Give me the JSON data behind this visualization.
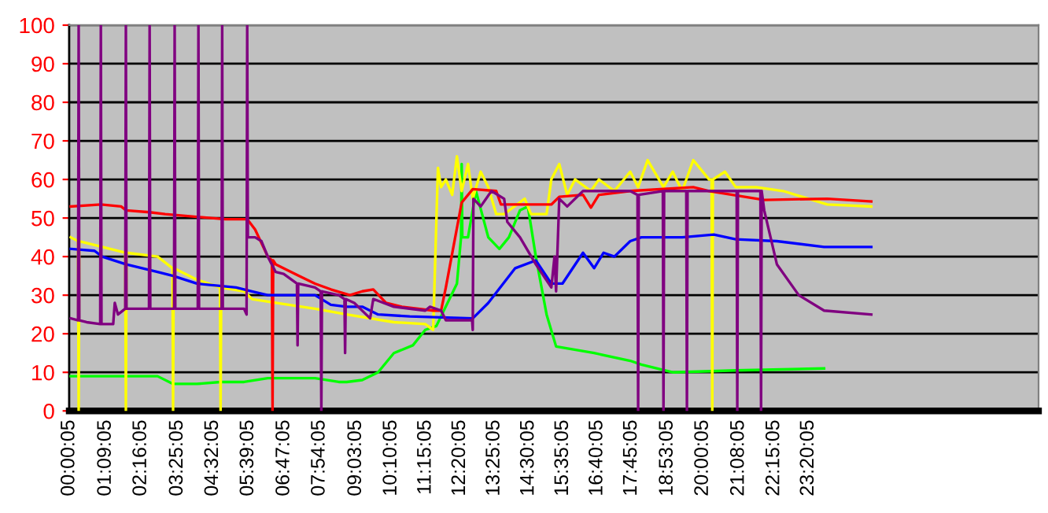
{
  "chart_data": {
    "type": "line",
    "xlim": [
      0,
      30.6
    ],
    "ylim": [
      0,
      100
    ],
    "yticks": [
      0,
      10,
      20,
      30,
      40,
      50,
      60,
      70,
      80,
      90,
      100
    ],
    "xticks": [
      {
        "value": 0.0014,
        "label": "00:00:05"
      },
      {
        "value": 1.1514,
        "label": "01:09:05"
      },
      {
        "value": 2.2681,
        "label": "02:16:05"
      },
      {
        "value": 3.4181,
        "label": "03:25:05"
      },
      {
        "value": 4.5347,
        "label": "04:32:05"
      },
      {
        "value": 5.6514,
        "label": "05:39:05"
      },
      {
        "value": 6.7847,
        "label": "06:47:05"
      },
      {
        "value": 7.9014,
        "label": "07:54:05"
      },
      {
        "value": 9.0514,
        "label": "09:03:05"
      },
      {
        "value": 10.1681,
        "label": "10:10:05"
      },
      {
        "value": 11.2514,
        "label": "11:15:05"
      },
      {
        "value": 12.3347,
        "label": "12:20:05"
      },
      {
        "value": 13.4181,
        "label": "13:25:05"
      },
      {
        "value": 14.5014,
        "label": "14:30:05"
      },
      {
        "value": 15.5847,
        "label": "15:35:05"
      },
      {
        "value": 16.6681,
        "label": "16:40:05"
      },
      {
        "value": 17.7514,
        "label": "17:45:05"
      },
      {
        "value": 18.8847,
        "label": "18:53:05"
      },
      {
        "value": 20.0014,
        "label": "20:00:05"
      },
      {
        "value": 21.1347,
        "label": "21:08:05"
      },
      {
        "value": 22.2514,
        "label": "22:15:05"
      },
      {
        "value": 23.3347,
        "label": "23:20:05"
      }
    ],
    "grid": "y",
    "marker": "none",
    "line_style": "solid",
    "series": [
      {
        "color": "#00ff00",
        "x": [
          0.05,
          2.79,
          3.28,
          4.03,
          4.78,
          5.52,
          6.27,
          7.76,
          8.51,
          8.76,
          9.25,
          9.75,
          10.25,
          10.85,
          11.24,
          11.59,
          12.24,
          12.37,
          12.39,
          12.41,
          12.59,
          12.84,
          13.23,
          13.58,
          13.88,
          14.23,
          14.48,
          14.73,
          15.07,
          15.37,
          16.57,
          17.71,
          18.06,
          19.05,
          21.04,
          23.83
        ],
        "values": [
          9,
          9,
          7,
          7,
          7.5,
          7.5,
          8.5,
          8.5,
          7.5,
          7.5,
          8,
          10,
          15,
          17,
          21,
          22,
          33,
          45,
          64,
          45,
          45,
          57,
          45,
          42,
          45,
          52,
          53,
          40,
          25,
          16.7,
          15,
          13,
          12,
          10,
          10.5,
          11
        ]
      },
      {
        "color": "#ffff00",
        "x": [
          0.05,
          0.28,
          0.3,
          0.32,
          0.8,
          1.77,
          1.79,
          1.81,
          2.79,
          3.26,
          3.28,
          3.3,
          4.03,
          4.76,
          4.78,
          4.8,
          5.52,
          5.77,
          6.52,
          7.76,
          8.76,
          10.25,
          11.24,
          11.49,
          11.64,
          11.74,
          11.89,
          12.09,
          12.24,
          12.39,
          12.59,
          12.74,
          12.99,
          13.23,
          13.48,
          13.73,
          14.38,
          14.58,
          15.07,
          15.22,
          15.47,
          15.72,
          15.97,
          16.47,
          16.72,
          17.21,
          17.71,
          17.96,
          18.26,
          18.76,
          19.05,
          19.35,
          19.7,
          20.2,
          20.28,
          20.3,
          20.32,
          20.7,
          21.04,
          21.69,
          22.54,
          23.93,
          25.32
        ],
        "values": [
          45,
          44,
          0,
          44,
          43,
          41,
          0,
          41,
          40,
          37,
          0,
          37,
          34,
          32,
          0,
          32,
          31,
          29,
          28,
          26.5,
          25,
          23,
          22.5,
          21,
          63,
          58,
          60,
          56,
          66,
          57,
          64,
          55,
          62,
          58,
          51,
          51,
          55,
          51,
          51,
          60,
          64,
          56,
          60,
          57,
          60,
          57,
          62,
          58,
          65,
          58,
          62,
          57,
          65,
          60,
          60,
          0,
          60,
          62,
          58,
          58,
          57,
          53.5,
          53
        ]
      },
      {
        "color": "#ff0000",
        "x": [
          0.05,
          1.0,
          1.64,
          1.79,
          2.54,
          3.03,
          4.03,
          4.93,
          5.62,
          5.87,
          6.27,
          6.4,
          6.42,
          6.44,
          6.52,
          7.26,
          7.76,
          8.26,
          8.86,
          9.25,
          9.6,
          10.0,
          10.5,
          11.49,
          11.74,
          11.89,
          12.39,
          12.74,
          13.48,
          13.63,
          15.22,
          15.47,
          16.22,
          16.47,
          16.72,
          17.71,
          19.7,
          20.2,
          21.94,
          23.93,
          25.32
        ],
        "values": [
          53,
          53.5,
          53,
          52,
          51.5,
          51,
          50.3,
          49.7,
          49.7,
          47,
          40,
          39,
          0,
          39,
          38,
          35,
          33,
          31.5,
          30,
          31,
          31.5,
          28,
          27,
          26,
          26,
          32,
          54,
          57.5,
          57,
          53.5,
          53.5,
          55.5,
          56,
          52.7,
          56,
          57,
          58,
          57,
          54.7,
          55,
          54.3
        ]
      },
      {
        "color": "#0000ff",
        "x": [
          0.05,
          0.8,
          1.04,
          1.79,
          2.79,
          3.28,
          4.03,
          5.27,
          5.77,
          6.27,
          7.76,
          8.26,
          8.76,
          9.25,
          9.75,
          10.75,
          12.74,
          13.23,
          14.08,
          14.73,
          15.22,
          15.57,
          16.22,
          16.57,
          16.87,
          17.21,
          17.71,
          18.06,
          19.35,
          20.35,
          21.04,
          22.34,
          23.83,
          25.32
        ],
        "values": [
          42,
          41.5,
          40,
          38,
          36,
          35,
          33,
          32,
          31,
          30,
          30,
          27.5,
          27,
          27,
          25,
          24.5,
          24,
          28,
          37,
          39,
          33,
          33,
          41,
          37,
          41,
          40,
          44,
          45,
          45,
          45.7,
          44.5,
          44,
          42.5,
          42.5
        ]
      },
      {
        "color": "#800080",
        "x": [
          0.05,
          0.28,
          0.3,
          0.32,
          0.55,
          0.98,
          1.0,
          1.02,
          1.39,
          1.44,
          1.54,
          1.77,
          1.79,
          1.81,
          2.52,
          2.54,
          2.56,
          3.31,
          3.33,
          3.35,
          4.06,
          4.08,
          4.1,
          4.81,
          4.83,
          4.85,
          5.52,
          5.6,
          5.62,
          5.64,
          5.87,
          6.07,
          6.27,
          6.52,
          6.77,
          7.19,
          7.21,
          7.23,
          7.76,
          7.94,
          7.96,
          7.98,
          8.51,
          8.69,
          8.71,
          8.73,
          9.0,
          9.5,
          9.6,
          10.25,
          11.24,
          11.39,
          11.74,
          11.89,
          12.72,
          12.74,
          12.76,
          12.99,
          13.33,
          13.73,
          13.83,
          14.23,
          14.73,
          15.22,
          15.32,
          15.37,
          15.47,
          15.72,
          16.22,
          17.71,
          17.94,
          17.96,
          17.98,
          18.74,
          18.76,
          18.78,
          19.48,
          19.5,
          19.52,
          19.7,
          20.7,
          21.07,
          21.09,
          21.11,
          21.82,
          21.84,
          21.86,
          21.94,
          22.34,
          23.03,
          23.83,
          25.32
        ],
        "values": [
          24,
          23.5,
          100,
          23.5,
          23,
          22.5,
          100,
          22.5,
          22.5,
          28,
          25,
          26.5,
          100,
          26.5,
          26.5,
          100,
          26.5,
          26.5,
          100,
          26.5,
          26.5,
          100,
          26.5,
          26.5,
          100,
          26.5,
          26.5,
          25,
          100,
          45,
          45,
          44,
          40,
          36,
          35.5,
          33,
          17,
          33,
          32,
          31,
          0,
          31,
          30,
          29,
          15,
          29,
          28,
          24,
          29,
          27,
          26,
          27,
          26,
          23.5,
          23.5,
          21,
          55,
          53,
          57,
          55,
          49,
          45,
          38,
          32,
          40,
          31,
          55,
          53,
          57,
          57,
          56,
          0,
          56,
          57,
          0,
          57,
          57,
          0,
          57,
          57,
          57,
          57,
          0,
          57,
          57,
          0,
          57,
          52,
          38,
          30,
          26,
          25
        ]
      }
    ]
  }
}
